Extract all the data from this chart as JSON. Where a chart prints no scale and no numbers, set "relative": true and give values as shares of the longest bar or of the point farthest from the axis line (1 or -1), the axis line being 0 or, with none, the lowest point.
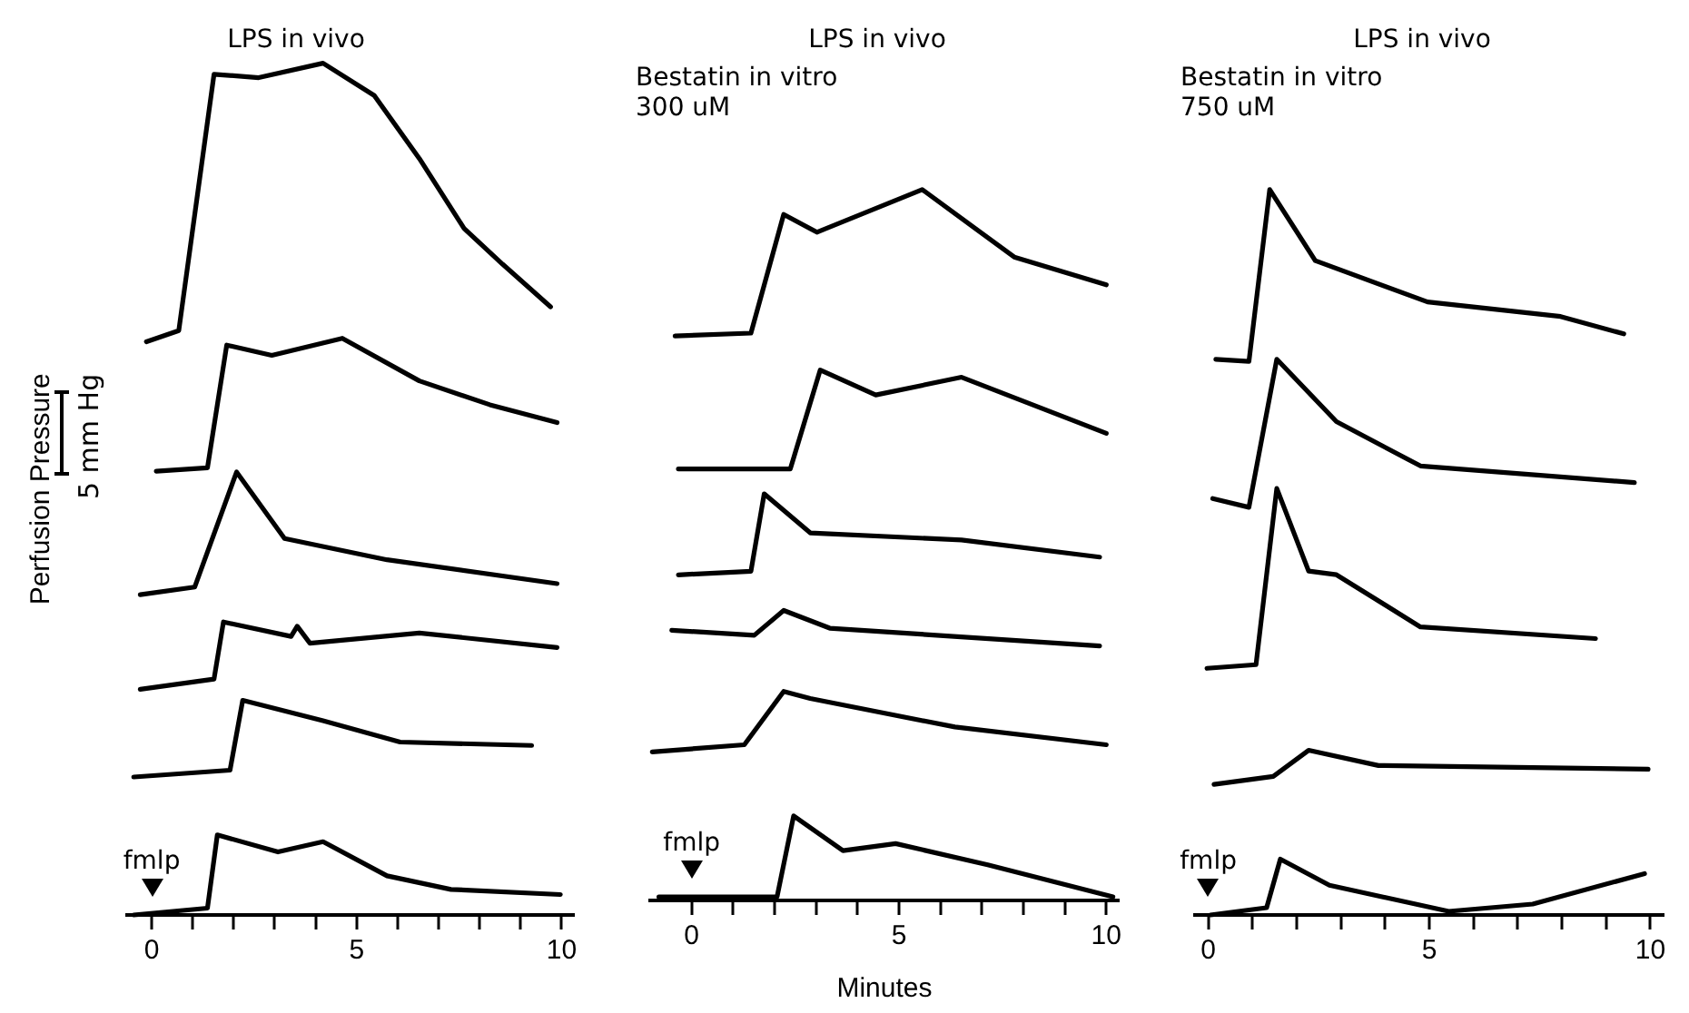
{
  "chart_data": [
    {
      "type": "line",
      "title": "LPS in vivo",
      "ylabel": "Perfusion Pressure",
      "relative": true,
      "legend": false,
      "grid": false,
      "marker": "none",
      "line_style": "solid",
      "tick_labels": "x",
      "xlim": [
        -0.6,
        10.3
      ],
      "xticks": [
        0,
        {
          "value": 1,
          "label": null
        },
        {
          "value": 2,
          "label": null
        },
        {
          "value": 3,
          "label": null
        },
        {
          "value": 4,
          "label": null
        },
        5,
        {
          "value": 6,
          "label": null
        },
        {
          "value": 7,
          "label": null
        },
        {
          "value": 8,
          "label": null
        },
        {
          "value": 9,
          "label": null
        },
        10
      ],
      "annotations": [
        "5 mm Hg",
        "fmlp"
      ],
      "series": [
        {
          "color": "#000000",
          "x": [
            -0.13,
            0.66,
            1.52,
            2.61,
            4.18,
            5.43,
            6.53,
            7.62,
            8.56,
            9.73
          ],
          "values": [
            0.673,
            0.686,
            0.987,
            0.983,
            1,
            0.962,
            0.888,
            0.806,
            0.764,
            0.714
          ]
        },
        {
          "color": "#000000",
          "x": [
            0.11,
            1.36,
            1.83,
            2.93,
            4.65,
            6.53,
            8.25,
            9.89
          ],
          "values": [
            0.521,
            0.525,
            0.669,
            0.657,
            0.677,
            0.627,
            0.599,
            0.578
          ]
        },
        {
          "color": "#000000",
          "x": [
            -0.28,
            1.05,
            2.07,
            3.24,
            5.74,
            9.89
          ],
          "values": [
            0.376,
            0.385,
            0.52,
            0.442,
            0.417,
            0.389
          ]
        },
        {
          "color": "#000000",
          "x": [
            -0.28,
            1.52,
            1.75,
            3.4,
            3.55,
            3.86,
            6.53,
            9.89
          ],
          "values": [
            0.265,
            0.277,
            0.344,
            0.327,
            0.339,
            0.319,
            0.331,
            0.314
          ]
        },
        {
          "color": "#000000",
          "x": [
            -0.44,
            1.91,
            2.22,
            4.18,
            6.06,
            9.27
          ],
          "values": [
            0.162,
            0.17,
            0.252,
            0.228,
            0.203,
            0.199
          ]
        },
        {
          "color": "#000000",
          "x": [
            -0.44,
            1.36,
            1.6,
            3.08,
            4.18,
            5.74,
            7.3,
            9.97
          ],
          "values": [
            0,
            0.008,
            0.094,
            0.074,
            0.086,
            0.046,
            0.03,
            0.024
          ]
        }
      ]
    },
    {
      "type": "line",
      "title": "LPS in vivo",
      "subtitle": "Bestatin in vitro\n300 uM",
      "xlabel": "Minutes",
      "relative": true,
      "legend": false,
      "grid": false,
      "marker": "none",
      "line_style": "solid",
      "tick_labels": "x",
      "xlim": [
        -1,
        10.3
      ],
      "xticks": [
        0,
        {
          "value": 1,
          "label": null
        },
        {
          "value": 2,
          "label": null
        },
        {
          "value": 3,
          "label": null
        },
        {
          "value": 4,
          "label": null
        },
        5,
        {
          "value": 6,
          "label": null
        },
        {
          "value": 7,
          "label": null
        },
        {
          "value": 8,
          "label": null
        },
        {
          "value": 9,
          "label": null
        },
        10
      ],
      "annotations": [
        "fmlp"
      ],
      "series": [
        {
          "color": "#000000",
          "x": [
            -0.4,
            1.43,
            2.22,
            3.02,
            5.56,
            7.78,
            10.0
          ],
          "values": [
            0.794,
            0.798,
            0.965,
            0.94,
            1,
            0.905,
            0.866
          ]
        },
        {
          "color": "#000000",
          "x": [
            -0.32,
            2.38,
            3.1,
            4.44,
            6.51,
            10.0
          ],
          "values": [
            0.607,
            0.607,
            0.746,
            0.711,
            0.736,
            0.657
          ]
        },
        {
          "color": "#000000",
          "x": [
            -0.32,
            1.43,
            1.75,
            2.86,
            6.51,
            9.84
          ],
          "values": [
            0.458,
            0.463,
            0.572,
            0.517,
            0.507,
            0.483
          ]
        },
        {
          "color": "#000000",
          "x": [
            -0.48,
            1.51,
            2.22,
            3.33,
            9.84
          ],
          "values": [
            0.38,
            0.373,
            0.408,
            0.383,
            0.358
          ]
        },
        {
          "color": "#000000",
          "x": [
            -0.95,
            1.27,
            2.22,
            2.86,
            6.35,
            10.0
          ],
          "values": [
            0.209,
            0.219,
            0.294,
            0.284,
            0.244,
            0.219
          ]
        },
        {
          "color": "#000000",
          "x": [
            -0.79,
            2.06,
            2.46,
            3.65,
            4.92,
            7.14,
            10.16
          ],
          "values": [
            0.005,
            0.005,
            0.119,
            0.07,
            0.08,
            0.05,
            0.005
          ]
        }
      ]
    },
    {
      "type": "line",
      "title": "LPS in vivo",
      "subtitle": "Bestatin in vitro\n750 uM",
      "relative": true,
      "legend": false,
      "grid": false,
      "marker": "none",
      "line_style": "solid",
      "tick_labels": "x",
      "xlim": [
        -0.3,
        10.3
      ],
      "xticks": [
        0,
        {
          "value": 1,
          "label": null
        },
        {
          "value": 2,
          "label": null
        },
        {
          "value": 3,
          "label": null
        },
        {
          "value": 4,
          "label": null
        },
        5,
        {
          "value": 6,
          "label": null
        },
        {
          "value": 7,
          "label": null
        },
        {
          "value": 8,
          "label": null
        },
        {
          "value": 9,
          "label": null
        },
        10
      ],
      "annotations": [
        "fmlp"
      ],
      "series": [
        {
          "color": "#000000",
          "x": [
            0.17,
            0.92,
            1.39,
            2.42,
            4.96,
            7.97,
            9.4
          ],
          "values": [
            0.766,
            0.763,
            1,
            0.902,
            0.845,
            0.825,
            0.801
          ]
        },
        {
          "color": "#000000",
          "x": [
            0.1,
            0.92,
            1.55,
            2.9,
            4.8,
            9.64
          ],
          "values": [
            0.574,
            0.562,
            0.766,
            0.68,
            0.619,
            0.596
          ]
        },
        {
          "color": "#000000",
          "x": [
            -0.03,
            1.08,
            1.55,
            2.27,
            2.9,
            4.8,
            8.76
          ],
          "values": [
            0.34,
            0.345,
            0.588,
            0.474,
            0.469,
            0.397,
            0.381
          ]
        },
        {
          "color": "#000000",
          "x": [
            0.13,
            1.47,
            2.27,
            3.85,
            9.95
          ],
          "values": [
            0.18,
            0.191,
            0.227,
            0.206,
            0.201
          ]
        },
        {
          "color": "#000000",
          "x": [
            0.05,
            1.32,
            1.63,
            2.74,
            5.44,
            7.34,
            9.87
          ],
          "values": [
            0,
            0.01,
            0.077,
            0.041,
            0.005,
            0.015,
            0.057
          ]
        }
      ]
    }
  ]
}
